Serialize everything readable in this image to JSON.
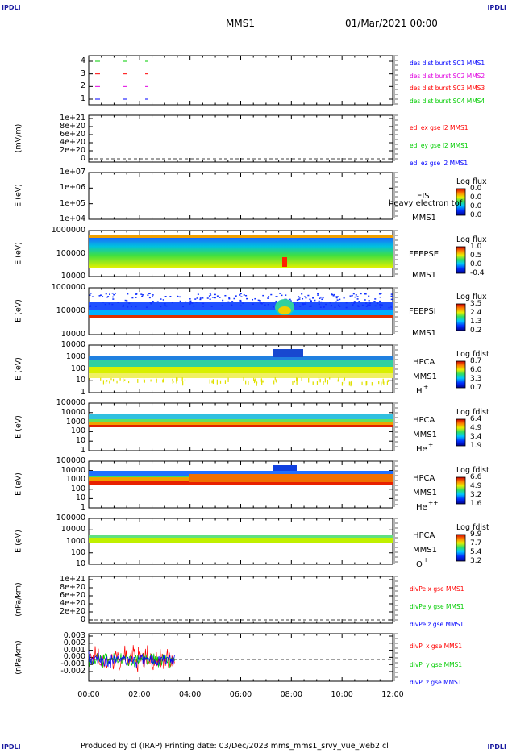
{
  "header": {
    "corner_tl": "IPDLI",
    "corner_tr": "IPDLI",
    "corner_bl": "IPDLI",
    "corner_br": "IPDLI",
    "title": "MMS1",
    "date": "01/Mar/2021 00:00"
  },
  "footer": {
    "text": "Produced by cl (IRAP)    Printing date: 03/Dec/2023    mms_mms1_srvy_vue_web2.cl"
  },
  "chart_data": [
    {
      "type": "line",
      "panel": "burst",
      "yticks": [
        "4",
        "3",
        "2",
        "1"
      ],
      "legend": [
        {
          "label": "des dist burst SC1 MMS1",
          "color": "#0000ff"
        },
        {
          "label": "des dist burst SC2 MMS2",
          "color": "#e000e0"
        },
        {
          "label": "des dist burst SC3 MMS3",
          "color": "#ff0000"
        },
        {
          "label": "des dist burst SC4 MMS4",
          "color": "#00cc00"
        }
      ]
    },
    {
      "type": "line",
      "panel": "edi",
      "ylabel": "(mV/m)",
      "yticks": [
        "1e+21",
        "8e+20",
        "6e+20",
        "4e+20",
        "2e+20",
        "0"
      ],
      "legend": [
        {
          "label": "edi ex gse l2 MMS1",
          "color": "#ff0000"
        },
        {
          "label": "edi ey gse l2 MMS1",
          "color": "#00cc00"
        },
        {
          "label": "edi ez gse l2 MMS1",
          "color": "#0000ff"
        }
      ]
    },
    {
      "type": "heatmap",
      "panel": "eis",
      "ylabel": "E (eV)",
      "yticks": [
        "1e+07",
        "1e+06",
        "1e+05",
        "1e+04"
      ],
      "side": [
        "EIS",
        "heavy electron tof",
        "MMS1"
      ],
      "cb_title": "Log flux",
      "cb_values": [
        "0.0",
        "0.0",
        "0.0",
        "0.0"
      ]
    },
    {
      "type": "heatmap",
      "panel": "feepse",
      "ylabel": "E (eV)",
      "yticks": [
        "1000000",
        "100000",
        "10000"
      ],
      "side": [
        "FEEPSE",
        "MMS1"
      ],
      "cb_title": "Log flux",
      "cb_values": [
        "1.0",
        "0.5",
        "0.0",
        "-0.4"
      ]
    },
    {
      "type": "heatmap",
      "panel": "feepsi",
      "ylabel": "E (eV)",
      "yticks": [
        "1000000",
        "100000",
        "10000"
      ],
      "side": [
        "FEEPSI",
        "MMS1"
      ],
      "cb_title": "Log flux",
      "cb_values": [
        "3.5",
        "2.4",
        "1.3",
        "0.2"
      ]
    },
    {
      "type": "heatmap",
      "panel": "hpca_h",
      "ylabel": "E (eV)",
      "yticks": [
        "10000",
        "1000",
        "100",
        "10",
        "1"
      ],
      "side": [
        "HPCA",
        "MMS1",
        "H",
        "+"
      ],
      "cb_title": "Log fdist",
      "cb_values": [
        "8.7",
        "6.0",
        "3.3",
        "0.7"
      ]
    },
    {
      "type": "heatmap",
      "panel": "hpca_he",
      "ylabel": "E (eV)",
      "yticks": [
        "100000",
        "10000",
        "1000",
        "100",
        "10",
        "1"
      ],
      "side": [
        "HPCA",
        "MMS1",
        "He",
        "+"
      ],
      "cb_title": "Log fdist",
      "cb_values": [
        "6.4",
        "4.9",
        "3.4",
        "1.9"
      ]
    },
    {
      "type": "heatmap",
      "panel": "hpca_hepp",
      "ylabel": "E (eV)",
      "yticks": [
        "100000",
        "10000",
        "1000",
        "100",
        "10",
        "1"
      ],
      "side": [
        "HPCA",
        "MMS1",
        "He",
        "++"
      ],
      "cb_title": "Log fdist",
      "cb_values": [
        "6.6",
        "4.9",
        "3.2",
        "1.6"
      ]
    },
    {
      "type": "heatmap",
      "panel": "hpca_o",
      "ylabel": "E (eV)",
      "yticks": [
        "100000",
        "10000",
        "1000",
        "100",
        "10"
      ],
      "side": [
        "HPCA",
        "MMS1",
        "O",
        "+"
      ],
      "cb_title": "Log fdist",
      "cb_values": [
        "9.9",
        "7.7",
        "5.4",
        "3.2"
      ]
    },
    {
      "type": "line",
      "panel": "divpe",
      "ylabel": "(nPa/km)",
      "yticks": [
        "1e+21",
        "8e+20",
        "6e+20",
        "4e+20",
        "2e+20",
        "0"
      ],
      "legend": [
        {
          "label": "divPe x gse MMS1",
          "color": "#ff0000"
        },
        {
          "label": "divPe y gse MMS1",
          "color": "#00cc00"
        },
        {
          "label": "divPe z gse MMS1",
          "color": "#0000ff"
        }
      ]
    },
    {
      "type": "line",
      "panel": "divpi",
      "ylabel": "(nPa/km)",
      "yticks": [
        "0.003",
        "0.002",
        "0.001",
        "0.000",
        "-0.001",
        "-0.002"
      ],
      "legend": [
        {
          "label": "divPi x gse MMS1",
          "color": "#ff0000"
        },
        {
          "label": "divPi y gse MMS1",
          "color": "#00cc00"
        },
        {
          "label": "divPi z gse MMS1",
          "color": "#0000ff"
        }
      ]
    }
  ],
  "xaxis": {
    "ticks": [
      "00:00",
      "02:00",
      "04:00",
      "06:00",
      "08:00",
      "10:00",
      "12:00"
    ]
  }
}
